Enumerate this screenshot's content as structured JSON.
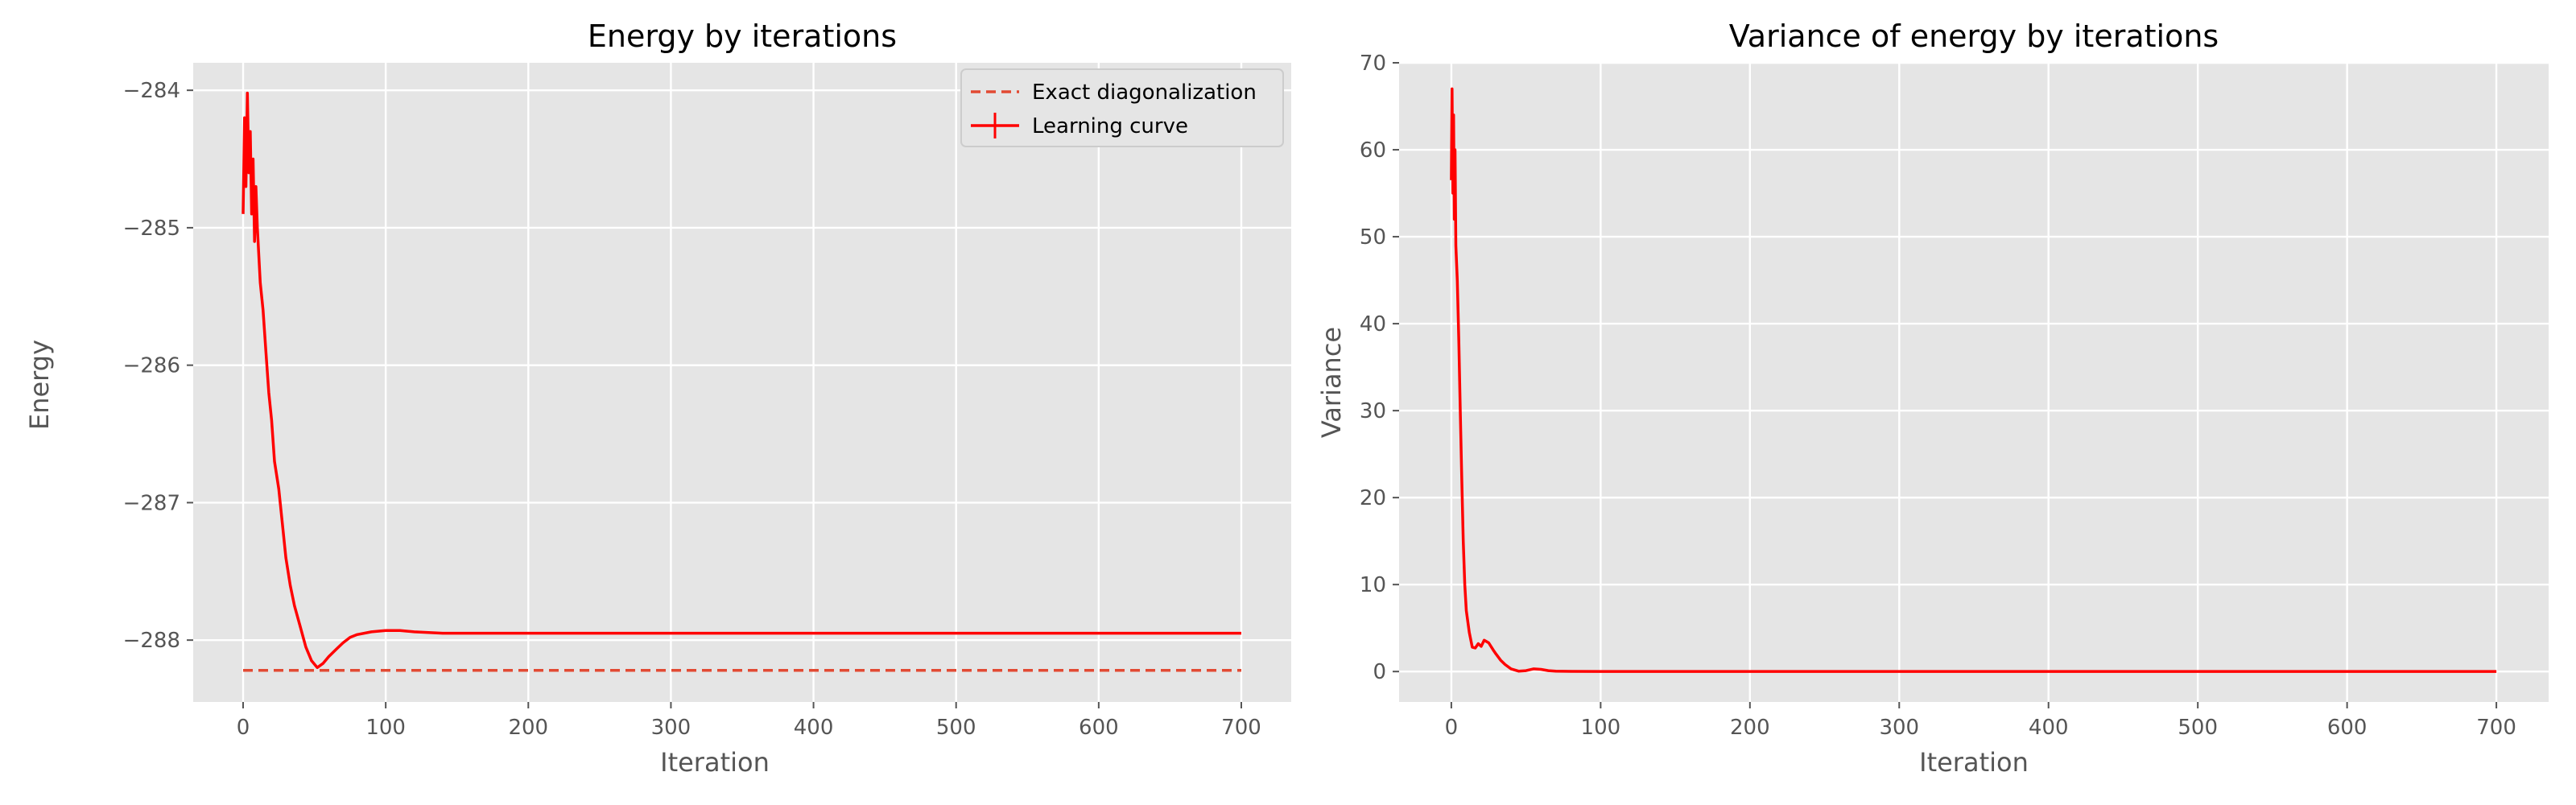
{
  "chart_data": [
    {
      "type": "line",
      "title": "Energy by iterations",
      "xlabel": "Iteration",
      "ylabel": "Energy",
      "xlim": [
        -35,
        735
      ],
      "ylim": [
        -288.45,
        -283.8
      ],
      "xticks": [
        0,
        100,
        200,
        300,
        400,
        500,
        600,
        700
      ],
      "yticks": [
        -288,
        -287,
        -286,
        -285,
        -284
      ],
      "xtick_labels": [
        "0",
        "100",
        "200",
        "300",
        "400",
        "500",
        "600",
        "700"
      ],
      "ytick_labels": [
        "−288",
        "−287",
        "−286",
        "−285",
        "−284"
      ],
      "grid": true,
      "legend_placement": "top-right",
      "legend": [
        "Exact diagonalization",
        "Learning curve"
      ],
      "series": [
        {
          "name": "Exact diagonalization",
          "style": "dashed",
          "color": "#e24a33",
          "x": [
            0,
            700
          ],
          "y": [
            -288.22,
            -288.22
          ]
        },
        {
          "name": "Learning curve",
          "style": "solid",
          "color": "#ff0000",
          "x": [
            0,
            1,
            2,
            3,
            4,
            5,
            6,
            7,
            8,
            9,
            10,
            12,
            14,
            16,
            18,
            20,
            22,
            25,
            28,
            30,
            33,
            36,
            40,
            44,
            48,
            52,
            56,
            60,
            65,
            70,
            75,
            80,
            90,
            100,
            110,
            120,
            140,
            160,
            200,
            300,
            400,
            500,
            600,
            700
          ],
          "y": [
            -284.9,
            -284.2,
            -284.7,
            -284.02,
            -284.6,
            -284.3,
            -284.9,
            -284.5,
            -285.1,
            -284.7,
            -285.0,
            -285.4,
            -285.6,
            -285.9,
            -286.2,
            -286.4,
            -286.7,
            -286.9,
            -287.2,
            -287.4,
            -287.6,
            -287.75,
            -287.9,
            -288.05,
            -288.15,
            -288.2,
            -288.17,
            -288.12,
            -288.07,
            -288.02,
            -287.98,
            -287.96,
            -287.94,
            -287.93,
            -287.93,
            -287.94,
            -287.95,
            -287.95,
            -287.95,
            -287.95,
            -287.95,
            -287.95,
            -287.95,
            -287.95
          ]
        }
      ]
    },
    {
      "type": "line",
      "title": "Variance of energy by iterations",
      "xlabel": "Iteration",
      "ylabel": "Variance",
      "xlim": [
        -35,
        735
      ],
      "ylim": [
        -3.5,
        70
      ],
      "xticks": [
        0,
        100,
        200,
        300,
        400,
        500,
        600,
        700
      ],
      "yticks": [
        0,
        10,
        20,
        30,
        40,
        50,
        60,
        70
      ],
      "xtick_labels": [
        "0",
        "100",
        "200",
        "300",
        "400",
        "500",
        "600",
        "700"
      ],
      "ytick_labels": [
        "0",
        "10",
        "20",
        "30",
        "40",
        "50",
        "60",
        "70"
      ],
      "grid": true,
      "series": [
        {
          "name": "Variance",
          "style": "solid",
          "color": "#ff0000",
          "x": [
            0,
            0.5,
            1,
            1.5,
            2,
            2.5,
            3,
            4,
            5,
            6,
            7,
            8,
            9,
            10,
            12,
            14,
            16,
            18,
            20,
            22,
            25,
            28,
            30,
            33,
            36,
            40,
            45,
            50,
            55,
            60,
            65,
            70,
            80,
            100,
            200,
            300,
            400,
            500,
            600,
            700
          ],
          "y": [
            56.5,
            67.0,
            55.0,
            64.0,
            52.0,
            60.0,
            49.0,
            45.0,
            38.0,
            30.0,
            22.0,
            15.0,
            10.0,
            7.0,
            4.5,
            2.8,
            2.7,
            3.2,
            2.9,
            3.6,
            3.3,
            2.5,
            2.0,
            1.3,
            0.8,
            0.3,
            0.05,
            0.1,
            0.3,
            0.25,
            0.1,
            0.04,
            0.02,
            0.01,
            0.01,
            0.01,
            0.01,
            0.01,
            0.01,
            0.01
          ]
        }
      ]
    }
  ]
}
